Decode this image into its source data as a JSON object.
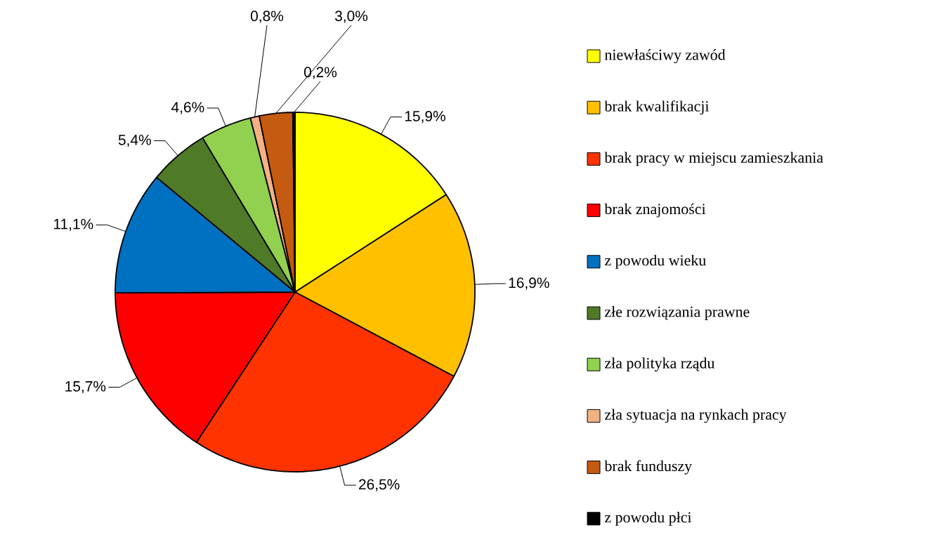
{
  "chart_data": {
    "type": "pie",
    "categories": [
      "niewłaściwy zawód",
      "brak kwalifikacji",
      "brak pracy w miejscu zamieszkania",
      "brak znajomości",
      "z powodu wieku",
      "złe rozwiązania prawne",
      "zła polityka rządu",
      "zła sytuacja na rynkach pracy",
      "brak funduszy",
      "z powodu płci"
    ],
    "values": [
      15.9,
      16.9,
      26.5,
      15.7,
      11.1,
      5.4,
      4.6,
      0.8,
      3.0,
      0.2
    ],
    "value_labels": [
      "15,9%",
      "16,9%",
      "26,5%",
      "15,7%",
      "11,1%",
      "5,4%",
      "4,6%",
      "0,8%",
      "3,0%",
      "0,2%"
    ],
    "colors": [
      "#ffff00",
      "#ffc000",
      "#ff3300",
      "#ff0000",
      "#0070c0",
      "#4f7a28",
      "#92d050",
      "#f4b183",
      "#c55a11",
      "#000000"
    ],
    "legend": "right"
  }
}
